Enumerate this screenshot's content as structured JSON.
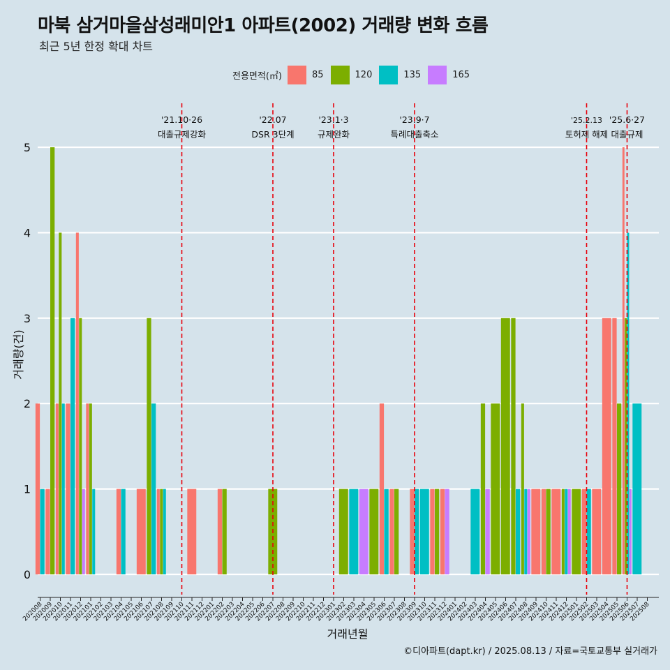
{
  "title": "마북 삼거마을삼성래미안1 아파트(2002) 거래량 변화 흐름",
  "subtitle": "최근 5년 한정 확대 차트",
  "caption": "©디아파트(dapt.kr) / 2025.08.13 / 자료=국토교통부 실거래가",
  "legend_title": "전용면적(㎡)",
  "colors": {
    "background": "#d5e3eb",
    "grid": "#ffffff",
    "event_line": "#e8000b"
  },
  "chart_data": {
    "type": "bar",
    "xlabel": "거래년월",
    "ylabel": "거래량(건)",
    "ylim": [
      0,
      5
    ],
    "yticks": [
      0,
      1,
      2,
      3,
      4,
      5
    ],
    "grid": true,
    "legend_position": "top",
    "categories": [
      "202008",
      "202009",
      "202010",
      "202011",
      "202012",
      "202101",
      "202102",
      "202103",
      "202104",
      "202105",
      "202106",
      "202107",
      "202108",
      "202109",
      "202110",
      "202111",
      "202112",
      "202201",
      "202202",
      "202203",
      "202204",
      "202205",
      "202206",
      "202207",
      "202208",
      "202209",
      "202210",
      "202211",
      "202212",
      "202301",
      "202302",
      "202303",
      "202304",
      "202305",
      "202306",
      "202307",
      "202308",
      "202309",
      "202310",
      "202311",
      "202312",
      "202401",
      "202402",
      "202403",
      "202404",
      "202405",
      "202406",
      "202407",
      "202408",
      "202409",
      "202410",
      "202411",
      "202412",
      "202501",
      "202502",
      "202503",
      "202504",
      "202505",
      "202506",
      "202507",
      "202508"
    ],
    "series": [
      {
        "name": "85",
        "color": "#f8766d",
        "values": [
          2,
          1,
          2,
          2,
          4,
          2,
          0,
          0,
          1,
          0,
          1,
          0,
          1,
          0,
          0,
          1,
          0,
          0,
          1,
          0,
          0,
          0,
          0,
          0,
          0,
          0,
          0,
          0,
          0,
          0,
          0,
          0,
          0,
          0,
          2,
          1,
          0,
          1,
          0,
          1,
          1,
          0,
          0,
          0,
          0,
          0,
          0,
          0,
          0,
          1,
          1,
          1,
          0,
          0,
          1,
          1,
          3,
          3,
          5,
          0,
          0
        ]
      },
      {
        "name": "120",
        "color": "#7cae00",
        "values": [
          0,
          5,
          4,
          0,
          3,
          2,
          0,
          0,
          0,
          0,
          0,
          3,
          1,
          0,
          0,
          0,
          0,
          0,
          1,
          0,
          0,
          0,
          0,
          1,
          0,
          0,
          0,
          0,
          0,
          0,
          1,
          0,
          0,
          1,
          0,
          1,
          0,
          0,
          0,
          1,
          0,
          0,
          0,
          0,
          2,
          2,
          3,
          3,
          2,
          0,
          1,
          0,
          1,
          1,
          0,
          0,
          0,
          2,
          3,
          0,
          0
        ]
      },
      {
        "name": "135",
        "color": "#00bfc4",
        "values": [
          1,
          0,
          2,
          3,
          0,
          1,
          0,
          0,
          1,
          0,
          0,
          2,
          1,
          0,
          0,
          0,
          0,
          0,
          0,
          0,
          0,
          0,
          0,
          0,
          0,
          0,
          0,
          0,
          0,
          0,
          0,
          1,
          0,
          0,
          1,
          0,
          0,
          1,
          1,
          0,
          0,
          0,
          0,
          1,
          0,
          0,
          0,
          1,
          1,
          0,
          0,
          0,
          1,
          0,
          1,
          0,
          0,
          0,
          4,
          2,
          0
        ]
      },
      {
        "name": "165",
        "color": "#c77cff",
        "values": [
          0,
          0,
          0,
          0,
          1,
          0,
          0,
          0,
          0,
          0,
          0,
          0,
          0,
          0,
          0,
          0,
          0,
          0,
          0,
          0,
          0,
          0,
          0,
          0,
          0,
          0,
          0,
          0,
          0,
          0,
          0,
          0,
          1,
          0,
          0,
          0,
          0,
          0,
          0,
          0,
          1,
          0,
          0,
          0,
          1,
          0,
          0,
          0,
          1,
          0,
          0,
          0,
          1,
          0,
          0,
          0,
          0,
          0,
          1,
          0,
          0
        ]
      }
    ],
    "annotations": [
      {
        "x": "202110",
        "date": "'21.10·26",
        "label": "대출규제강화"
      },
      {
        "x": "202207",
        "date": "'22.07",
        "label": "DSR 3단계"
      },
      {
        "x": "202301",
        "date": "'23.1·3",
        "label": "규제완화"
      },
      {
        "x": "202309",
        "date": "'23.9·7",
        "label": "특례대출축소"
      },
      {
        "x": "202502",
        "date": "'25.2.13",
        "label": "토허제 해제"
      },
      {
        "x": "202506",
        "date": "'25.6·27",
        "label": "대출규제"
      }
    ]
  }
}
